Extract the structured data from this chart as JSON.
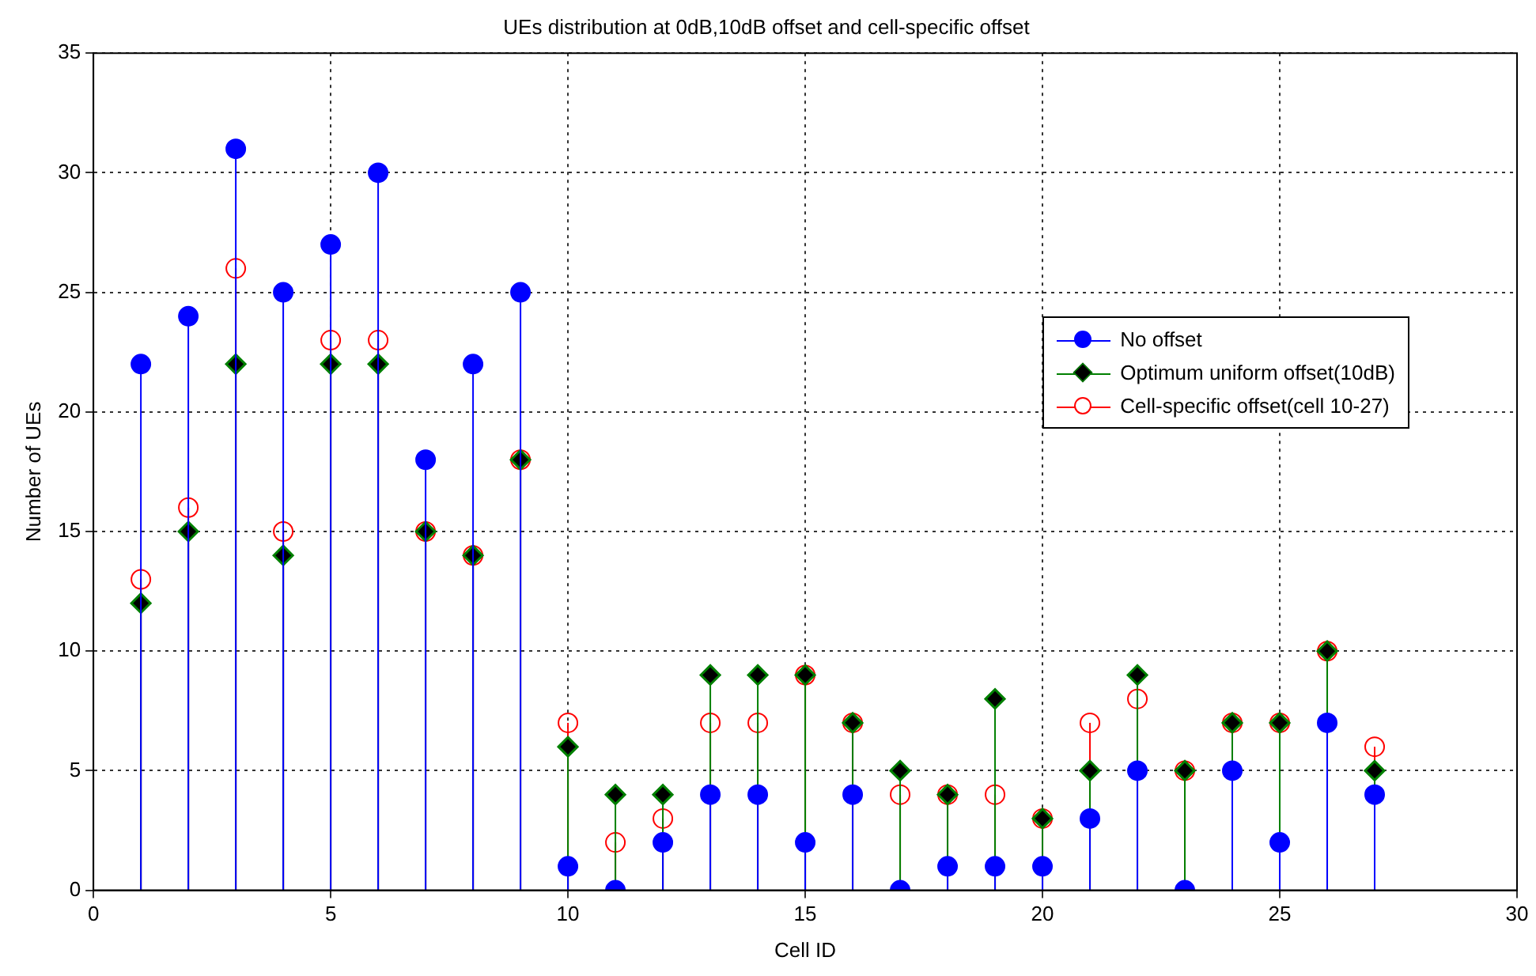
{
  "chart_data": {
    "type": "lollipop",
    "title": "UEs distribution at 0dB,10dB offset and cell-specific offset",
    "xlabel": "Cell ID",
    "ylabel": "Number of UEs",
    "x": [
      1,
      2,
      3,
      4,
      5,
      6,
      7,
      8,
      9,
      10,
      11,
      12,
      13,
      14,
      15,
      16,
      17,
      18,
      19,
      20,
      21,
      22,
      23,
      24,
      25,
      26,
      27
    ],
    "series": [
      {
        "name": "No offset",
        "color": "#0000ff",
        "marker": "circle",
        "values": [
          22,
          24,
          31,
          25,
          27,
          30,
          18,
          22,
          25,
          1,
          0,
          2,
          4,
          4,
          2,
          4,
          0,
          1,
          1,
          1,
          3,
          5,
          0,
          5,
          2,
          7,
          4
        ]
      },
      {
        "name": "Optimum uniform offset(10dB)",
        "color": "#008000",
        "marker": "diamond",
        "values": [
          12,
          15,
          22,
          14,
          22,
          22,
          15,
          14,
          18,
          6,
          4,
          4,
          9,
          9,
          9,
          7,
          5,
          4,
          8,
          3,
          5,
          9,
          5,
          7,
          7,
          10,
          5
        ]
      },
      {
        "name": "Cell-specific offset(cell 10-27)",
        "color": "#ff0000",
        "marker": "circle",
        "values": [
          13,
          16,
          26,
          15,
          23,
          23,
          15,
          14,
          18,
          7,
          2,
          3,
          7,
          7,
          9,
          7,
          4,
          4,
          4,
          3,
          7,
          8,
          5,
          7,
          7,
          10,
          6
        ]
      }
    ],
    "xlim": [
      0,
      30
    ],
    "xticks": [
      0,
      5,
      10,
      15,
      20,
      25,
      30
    ],
    "ylim": [
      0,
      35
    ],
    "yticks": [
      0,
      5,
      10,
      15,
      20,
      25,
      30,
      35
    ],
    "grid": true,
    "legend": "right"
  }
}
